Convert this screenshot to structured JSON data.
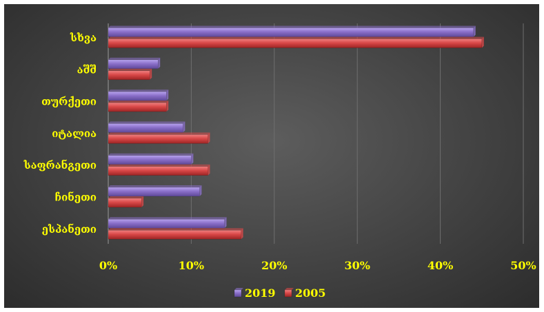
{
  "chart_data": {
    "type": "bar",
    "orientation": "horizontal",
    "categories": [
      "სხვა",
      "აშშ",
      "თურქეთი",
      "იტალია",
      "საფრანგეთი",
      "ჩინეთი",
      "ესპანეთი"
    ],
    "series": [
      {
        "name": "2019",
        "values": [
          44,
          6,
          7,
          9,
          10,
          11,
          14
        ],
        "color": "#8a6fc9"
      },
      {
        "name": "2005",
        "values": [
          45,
          5,
          7,
          12,
          12,
          4,
          16
        ],
        "color": "#d94848"
      }
    ],
    "xlim": [
      0,
      50
    ],
    "xticks": [
      0,
      10,
      20,
      30,
      40,
      50
    ],
    "tick_labels": [
      "0%",
      "10%",
      "20%",
      "30%",
      "40%",
      "50%"
    ],
    "grid": true,
    "legend_position": "bottom",
    "text_color": "#ffff00",
    "background": "#474747"
  }
}
